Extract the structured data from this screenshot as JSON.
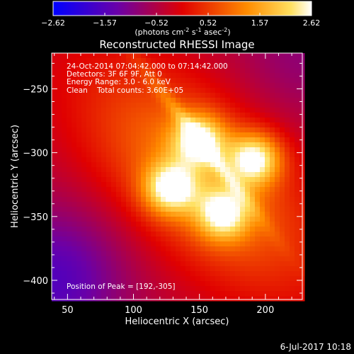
{
  "chart_data": {
    "type": "heatmap",
    "title": "Reconstructed RHESSI Image",
    "xlabel": "Heliocentric X (arcsec)",
    "ylabel": "Heliocentric Y (arcsec)",
    "xlim": [
      38,
      228
    ],
    "ylim": [
      -415,
      -222
    ],
    "xticks": [
      50,
      100,
      150,
      200
    ],
    "yticks": [
      -250,
      -300,
      -350,
      -400
    ],
    "colorbar": {
      "ticks": [
        "-2.62",
        "-1.57",
        "-0.52",
        "0.52",
        "1.57",
        "2.62"
      ],
      "range": [
        -2.62,
        2.62
      ],
      "unit_label": {
        "prefix": "(photons cm",
        "sup1": "-2",
        "mid1": " s",
        "sup2": "-1",
        "mid2": " asec",
        "sup3": "-2",
        "suffix": ")"
      }
    },
    "info_lines": [
      "24-Oct-2014 07:04:42.000 to 07:14:42.000",
      "Detectors: 3F 6F 9F, Att 0",
      "Energy Range: 3.0 - 6.0 keV",
      "Clean    Total counts: 3.60E+05"
    ],
    "peak_label": "Position of Peak = [192,-305]",
    "sources": [
      {
        "x": 192,
        "y": -305,
        "value": 2.62
      },
      {
        "x": 150,
        "y": -290,
        "value": 2.3
      },
      {
        "x": 128,
        "y": -328,
        "value": 2.4
      },
      {
        "x": 168,
        "y": -348,
        "value": 2.2
      }
    ],
    "background_level": -0.4,
    "colors": {
      "low": "#0000ff",
      "mid_low": "#800080",
      "mid": "#ff0000",
      "mid_high": "#ffa000",
      "high": "#ffffff"
    }
  },
  "footer": {
    "date": "6-Jul-2017 10:18"
  }
}
